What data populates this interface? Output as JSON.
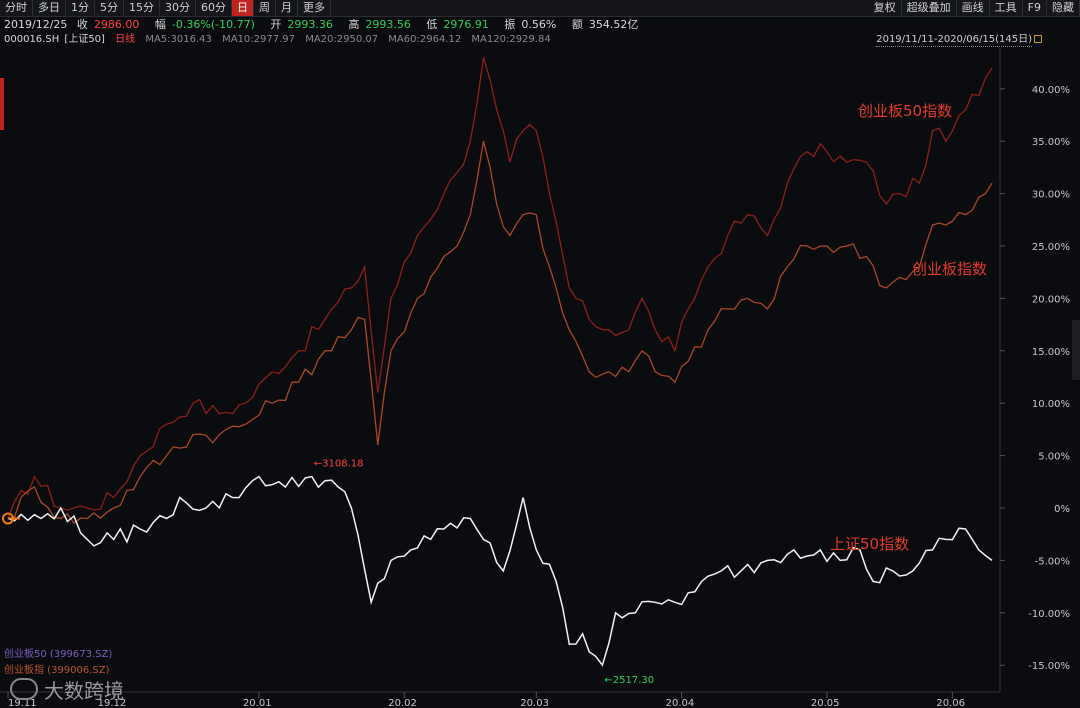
{
  "toolbar": {
    "periods": [
      "分时",
      "多日",
      "1分",
      "5分",
      "15分",
      "30分",
      "60分",
      "日",
      "周",
      "月",
      "更多"
    ],
    "active_index": 7,
    "right": [
      "复权",
      "超级叠加",
      "画线",
      "工具",
      "F9",
      "隐藏"
    ]
  },
  "quote": {
    "date": "2019/12/25",
    "close_label": "收",
    "close": "2986.00",
    "change_label": "幅",
    "change": "-0.36%(-10.77)",
    "open_label": "开",
    "open": "2993.36",
    "high_label": "高",
    "high": "2993.56",
    "low_label": "低",
    "low": "2976.91",
    "amp_label": "振",
    "amp": "0.56%",
    "amount_label": "额",
    "amount": "354.52亿"
  },
  "ma": {
    "code": "000016.SH",
    "name": "[上证50]",
    "kline": "日线",
    "ma5": "MA5:3016.43",
    "ma10": "MA10:2977.97",
    "ma20": "MA20:2950.07",
    "ma60": "MA60:2964.12",
    "ma120": "MA120:2929.84"
  },
  "range": "2019/11/11-2020/06/15(145日)",
  "legend": {
    "cyb50": "创业板50 (399673.SZ)",
    "cyb": "创业板指 (399006.SZ)"
  },
  "logo_text": "大数跨境",
  "colors": {
    "cyb50": "#8e1f1a",
    "cyb": "#a9472a",
    "sz50": "#f2f2f2",
    "label_red": "#e23a2c",
    "up": "#2ed158",
    "down": "#ff4040"
  },
  "chart_data": {
    "type": "line",
    "y_unit": "%",
    "ylim": [
      -17,
      44
    ],
    "yticks": [
      "40.00%",
      "35.00%",
      "30.00%",
      "25.00%",
      "20.00%",
      "15.00%",
      "10.00%",
      "5.00%",
      "0%",
      "-5.00%",
      "-10.00%",
      "-15.00%"
    ],
    "ytick_values": [
      40,
      35,
      30,
      25,
      20,
      15,
      10,
      5,
      0,
      -5,
      -10,
      -15
    ],
    "xticks": [
      "19.11",
      "19.12",
      "20.01",
      "20.02",
      "20.03",
      "20.04",
      "20.05",
      "20.06"
    ],
    "xtick_index": [
      0,
      16,
      38,
      60,
      80,
      102,
      124,
      143
    ],
    "n_points": 150,
    "annotations": [
      {
        "text": "3108.18",
        "arrow": "←",
        "series": "sz50",
        "index": 46
      },
      {
        "text": "2517.30",
        "arrow": "←",
        "series": "sz50",
        "index": 90
      }
    ],
    "series_labels": [
      {
        "series": "cyb50",
        "text": "创业板50指数"
      },
      {
        "series": "cyb",
        "text": "创业板指数"
      },
      {
        "series": "sz50",
        "text": "上证50指数"
      }
    ],
    "series": [
      {
        "key": "sz50",
        "name": "上证50指数",
        "anchors": [
          [
            0,
            -1
          ],
          [
            5,
            -1
          ],
          [
            8,
            0
          ],
          [
            12,
            -3
          ],
          [
            16,
            -3
          ],
          [
            20,
            -2
          ],
          [
            24,
            -1
          ],
          [
            26,
            1
          ],
          [
            30,
            0
          ],
          [
            34,
            1
          ],
          [
            38,
            3
          ],
          [
            42,
            2
          ],
          [
            46,
            3
          ],
          [
            50,
            2
          ],
          [
            52,
            0
          ],
          [
            55,
            -9
          ],
          [
            58,
            -5
          ],
          [
            61,
            -4
          ],
          [
            64,
            -3
          ],
          [
            66,
            -2
          ],
          [
            70,
            -1
          ],
          [
            72,
            -3
          ],
          [
            75,
            -6
          ],
          [
            78,
            1
          ],
          [
            80,
            -4
          ],
          [
            83,
            -7
          ],
          [
            85,
            -13
          ],
          [
            87,
            -12
          ],
          [
            90,
            -15
          ],
          [
            92,
            -10
          ],
          [
            95,
            -10
          ],
          [
            98,
            -9
          ],
          [
            101,
            -9
          ],
          [
            104,
            -8
          ],
          [
            108,
            -6
          ],
          [
            111,
            -6
          ],
          [
            115,
            -5
          ],
          [
            119,
            -4
          ],
          [
            123,
            -4
          ],
          [
            126,
            -5
          ],
          [
            129,
            -4
          ],
          [
            131,
            -7
          ],
          [
            134,
            -6
          ],
          [
            137,
            -6
          ],
          [
            140,
            -4
          ],
          [
            142,
            -3
          ],
          [
            145,
            -2
          ],
          [
            147,
            -4
          ],
          [
            149,
            -5
          ]
        ]
      },
      {
        "key": "cyb50",
        "name": "创业板50指数",
        "anchors": [
          [
            0,
            -1
          ],
          [
            4,
            3
          ],
          [
            8,
            0
          ],
          [
            12,
            0
          ],
          [
            16,
            1
          ],
          [
            20,
            5
          ],
          [
            24,
            8
          ],
          [
            28,
            10
          ],
          [
            32,
            9
          ],
          [
            36,
            10
          ],
          [
            40,
            13
          ],
          [
            44,
            15
          ],
          [
            48,
            18
          ],
          [
            52,
            21
          ],
          [
            54,
            23
          ],
          [
            56,
            11
          ],
          [
            58,
            20
          ],
          [
            62,
            26
          ],
          [
            66,
            30
          ],
          [
            68,
            32
          ],
          [
            70,
            35
          ],
          [
            72,
            43
          ],
          [
            74,
            38
          ],
          [
            76,
            33
          ],
          [
            78,
            36
          ],
          [
            80,
            36
          ],
          [
            82,
            30
          ],
          [
            85,
            21
          ],
          [
            88,
            18
          ],
          [
            91,
            17
          ],
          [
            94,
            17
          ],
          [
            96,
            20
          ],
          [
            98,
            17
          ],
          [
            101,
            15
          ],
          [
            103,
            19
          ],
          [
            106,
            23
          ],
          [
            109,
            26
          ],
          [
            112,
            28
          ],
          [
            115,
            26
          ],
          [
            118,
            31
          ],
          [
            121,
            34
          ],
          [
            124,
            34
          ],
          [
            127,
            33
          ],
          [
            130,
            33
          ],
          [
            133,
            29
          ],
          [
            135,
            30
          ],
          [
            138,
            31
          ],
          [
            140,
            36
          ],
          [
            142,
            35
          ],
          [
            145,
            38
          ],
          [
            148,
            41
          ],
          [
            149,
            42
          ]
        ]
      },
      {
        "key": "cyb",
        "name": "创业板指数",
        "anchors": [
          [
            0,
            -1
          ],
          [
            4,
            2
          ],
          [
            8,
            -1
          ],
          [
            12,
            -1
          ],
          [
            16,
            0
          ],
          [
            20,
            3
          ],
          [
            24,
            5
          ],
          [
            28,
            7
          ],
          [
            32,
            7
          ],
          [
            36,
            8
          ],
          [
            40,
            10
          ],
          [
            44,
            12
          ],
          [
            48,
            15
          ],
          [
            52,
            17
          ],
          [
            54,
            18
          ],
          [
            56,
            6
          ],
          [
            58,
            15
          ],
          [
            62,
            20
          ],
          [
            66,
            24
          ],
          [
            68,
            25
          ],
          [
            70,
            28
          ],
          [
            72,
            35
          ],
          [
            74,
            29
          ],
          [
            76,
            26
          ],
          [
            78,
            28
          ],
          [
            80,
            28
          ],
          [
            82,
            23
          ],
          [
            85,
            17
          ],
          [
            88,
            13
          ],
          [
            91,
            13
          ],
          [
            94,
            13
          ],
          [
            96,
            15
          ],
          [
            98,
            13
          ],
          [
            101,
            12
          ],
          [
            103,
            14
          ],
          [
            106,
            17
          ],
          [
            109,
            19
          ],
          [
            112,
            20
          ],
          [
            115,
            19
          ],
          [
            118,
            23
          ],
          [
            121,
            25
          ],
          [
            124,
            25
          ],
          [
            127,
            25
          ],
          [
            130,
            24
          ],
          [
            133,
            21
          ],
          [
            135,
            22
          ],
          [
            138,
            23
          ],
          [
            140,
            27
          ],
          [
            142,
            27
          ],
          [
            145,
            28
          ],
          [
            148,
            30
          ],
          [
            149,
            31
          ]
        ]
      }
    ]
  }
}
